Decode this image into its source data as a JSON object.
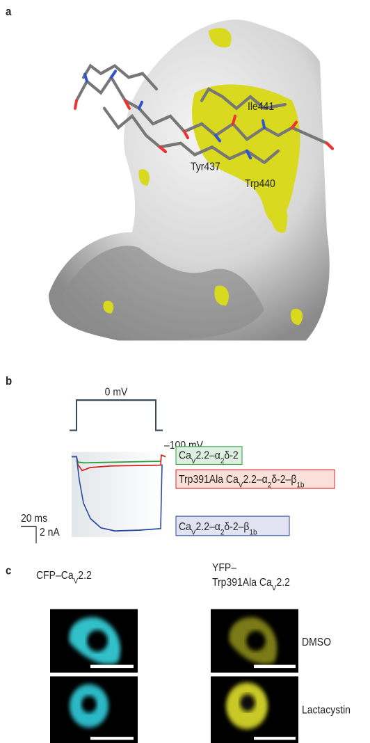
{
  "panels": {
    "a": {
      "label": "a",
      "residues": [
        "Ile441",
        "Tyr437",
        "Trp440"
      ]
    },
    "b": {
      "label": "b",
      "voltage": [
        "0 mV",
        "–100 mV"
      ],
      "scale": [
        "20 ms",
        "2 nA"
      ],
      "legend": [
        [
          {
            "text": "Ca"
          },
          {
            "sub": "V"
          },
          {
            "text": "2.2–α"
          },
          {
            "sub": "2"
          },
          {
            "text": "δ-2"
          }
        ],
        [
          {
            "text": "Trp391Ala Ca"
          },
          {
            "sub": "V"
          },
          {
            "text": "2.2–α"
          },
          {
            "sub": "2"
          },
          {
            "text": "δ-2–β"
          },
          {
            "sub": "1b"
          }
        ],
        [
          {
            "text": "Ca"
          },
          {
            "sub": "V"
          },
          {
            "text": "2.2–α"
          },
          {
            "sub": "2"
          },
          {
            "text": "δ-2–β"
          },
          {
            "sub": "1b"
          }
        ]
      ]
    },
    "c": {
      "label": "c",
      "columns": [
        [
          [
            {
              "text": "CFP–Ca"
            },
            {
              "sub": "V"
            },
            {
              "text": "2.2"
            }
          ]
        ],
        [
          [
            {
              "text": "YFP–"
            }
          ],
          [
            {
              "text": "Trp391Ala Ca"
            },
            {
              "sub": "V"
            },
            {
              "text": "2.2"
            }
          ]
        ]
      ],
      "rows": [
        "DMSO",
        "Lactacystin"
      ]
    }
  }
}
